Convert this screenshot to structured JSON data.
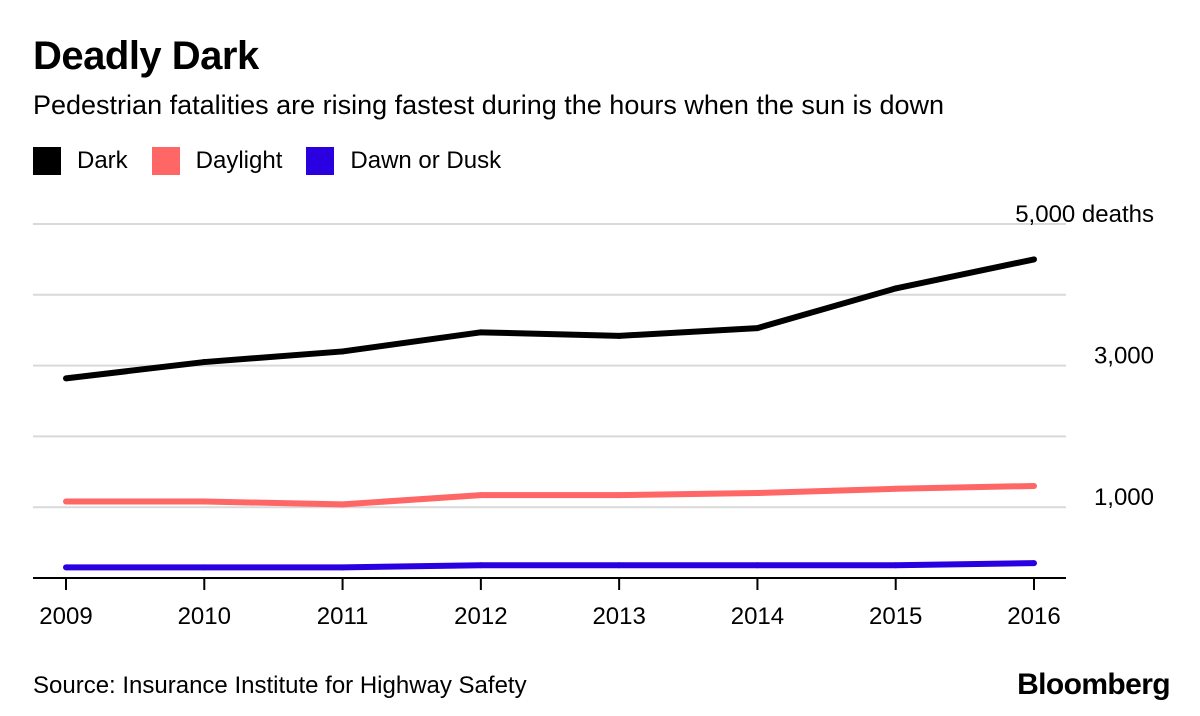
{
  "header": {
    "title": "Deadly Dark",
    "subtitle": "Pedestrian fatalities are rising fastest during the hours when the sun is down"
  },
  "legend": [
    {
      "label": "Dark",
      "color": "#000000"
    },
    {
      "label": "Daylight",
      "color": "#ff6666"
    },
    {
      "label": "Dawn or Dusk",
      "color": "#2a00e0"
    }
  ],
  "footer": {
    "source": "Source: Insurance Institute for Highway Safety",
    "logo": "Bloomberg"
  },
  "chart_data": {
    "type": "line",
    "x": [
      2009,
      2010,
      2011,
      2012,
      2013,
      2014,
      2015,
      2016
    ],
    "x_tick_labels": [
      "2009",
      "2010",
      "2011",
      "2012",
      "2013",
      "2014",
      "2015",
      "2016"
    ],
    "series": [
      {
        "name": "Dark",
        "color": "#000000",
        "values": [
          2820,
          3050,
          3200,
          3470,
          3420,
          3530,
          4090,
          4500
        ]
      },
      {
        "name": "Daylight",
        "color": "#ff6666",
        "values": [
          1080,
          1080,
          1040,
          1170,
          1170,
          1200,
          1260,
          1300
        ]
      },
      {
        "name": "Dawn or Dusk",
        "color": "#2a00e0",
        "values": [
          150,
          150,
          150,
          180,
          180,
          180,
          180,
          210
        ]
      }
    ],
    "ylim": [
      0,
      5000
    ],
    "y_gridlines": [
      1000,
      2000,
      3000,
      4000,
      5000
    ],
    "y_tick_labels": [
      {
        "value": 5000,
        "label": "5,000 deaths"
      },
      {
        "value": 3000,
        "label": "3,000"
      },
      {
        "value": 1000,
        "label": "1,000"
      }
    ],
    "grid": true,
    "legend_position": "top-left"
  }
}
